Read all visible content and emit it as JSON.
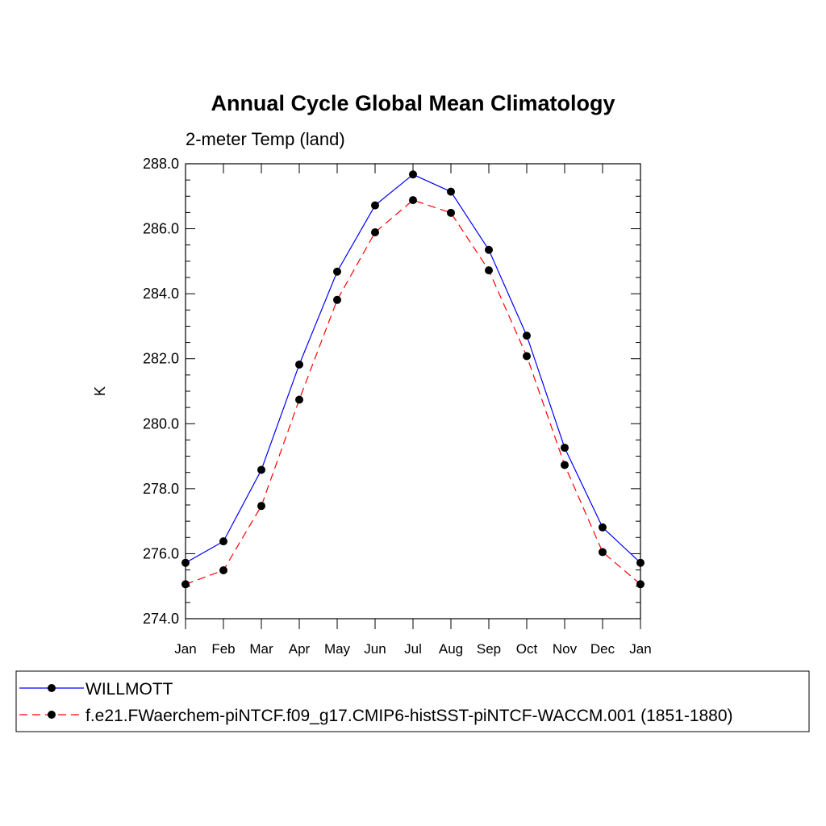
{
  "chart_data": {
    "type": "line",
    "title": "Annual Cycle Global Mean Climatology",
    "subtitle": "2-meter Temp (land)",
    "xlabel": "",
    "ylabel": "K",
    "categories": [
      "Jan",
      "Feb",
      "Mar",
      "Apr",
      "May",
      "Jun",
      "Jul",
      "Aug",
      "Sep",
      "Oct",
      "Nov",
      "Dec",
      "Jan"
    ],
    "ylim": [
      274.0,
      288.0
    ],
    "yticks": [
      274.0,
      276.0,
      278.0,
      280.0,
      282.0,
      284.0,
      286.0,
      288.0
    ],
    "ytick_labels": [
      "274.0",
      "276.0",
      "278.0",
      "280.0",
      "282.0",
      "284.0",
      "286.0",
      "288.0"
    ],
    "grid": false,
    "legend_position": "bottom",
    "series": [
      {
        "name": "WILLMOTT",
        "color": "#0000ff",
        "line_style": "solid",
        "marker": "filled-circle",
        "values": [
          275.72,
          276.38,
          278.58,
          281.82,
          284.68,
          286.72,
          287.67,
          287.14,
          285.35,
          282.71,
          279.26,
          276.81,
          275.72
        ]
      },
      {
        "name": "f.e21.FWaerchem-piNTCF.f09_g17.CMIP6-histSST-piNTCF-WACCM.001 (1851-1880)",
        "color": "#ff0000",
        "line_style": "dashed",
        "marker": "filled-circle",
        "values": [
          275.06,
          275.49,
          277.47,
          280.74,
          283.81,
          285.89,
          286.88,
          286.49,
          284.72,
          282.08,
          278.73,
          276.05,
          275.06
        ]
      }
    ]
  }
}
